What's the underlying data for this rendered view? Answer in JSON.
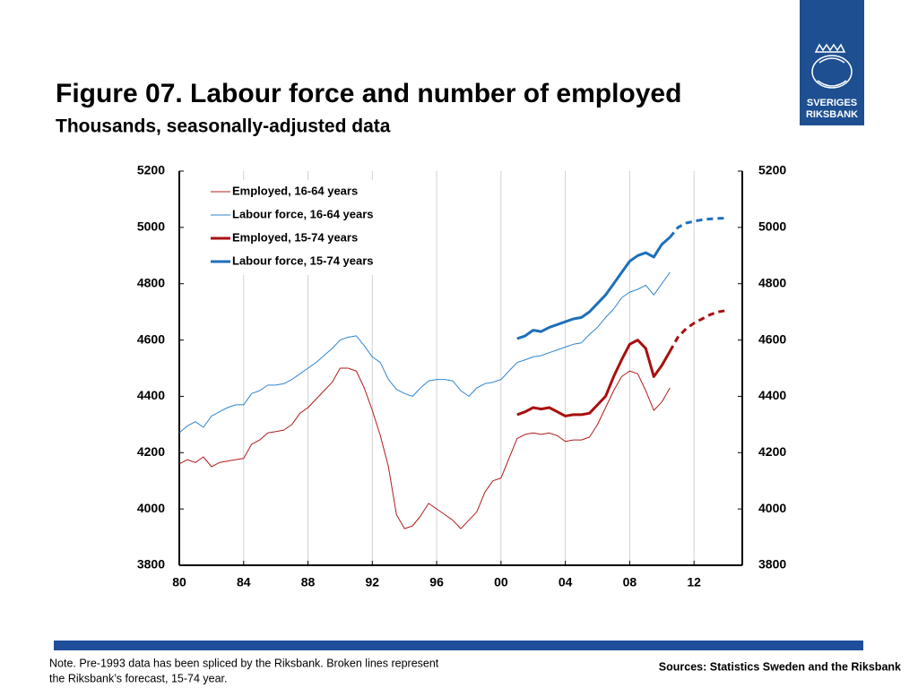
{
  "chart_data": {
    "type": "line",
    "title": "Figure 07. Labour force and number of employed",
    "subtitle": "Thousands, seasonally-adjusted data",
    "xlim": [
      1980,
      2015
    ],
    "xticks": [
      {
        "value": 1980,
        "label": "80"
      },
      {
        "value": 1984,
        "label": "84"
      },
      {
        "value": 1988,
        "label": "88"
      },
      {
        "value": 1992,
        "label": "92"
      },
      {
        "value": 1996,
        "label": "96"
      },
      {
        "value": 2000,
        "label": "00"
      },
      {
        "value": 2004,
        "label": "04"
      },
      {
        "value": 2008,
        "label": "08"
      },
      {
        "value": 2012,
        "label": "12"
      }
    ],
    "ylim": [
      3800,
      5200
    ],
    "yticks": [
      3800,
      4000,
      4200,
      4400,
      4600,
      4800,
      5000,
      5200
    ],
    "y2lim": [
      3800,
      5200
    ],
    "y2ticks": [
      3800,
      4000,
      4200,
      4400,
      4600,
      4800,
      5000,
      5200
    ],
    "grid": "x",
    "legend": "upper left",
    "forecast_from": 2010.5,
    "series": [
      {
        "name": "Employed, 16-64 years",
        "color": "#b01c1c",
        "line_width": 1,
        "x": [
          1980,
          1980.5,
          1981,
          1981.5,
          1982,
          1982.5,
          1983,
          1983.5,
          1984,
          1984.5,
          1985,
          1985.5,
          1986,
          1986.5,
          1987,
          1987.5,
          1988,
          1988.5,
          1989,
          1989.5,
          1990,
          1990.5,
          1991,
          1991.5,
          1992,
          1992.5,
          1993,
          1993.5,
          1994,
          1994.5,
          1995,
          1995.5,
          1996,
          1996.5,
          1997,
          1997.5,
          1998,
          1998.5,
          1999,
          1999.5,
          2000,
          2000.5,
          2001,
          2001.5,
          2002,
          2002.5,
          2003,
          2003.5,
          2004,
          2004.5,
          2005,
          2005.5,
          2006,
          2006.5,
          2007,
          2007.5,
          2008,
          2008.5,
          2009,
          2009.5,
          2010,
          2010.5
        ],
        "values": [
          4160,
          4175,
          4165,
          4185,
          4150,
          4165,
          4170,
          4175,
          4180,
          4230,
          4245,
          4270,
          4275,
          4280,
          4300,
          4340,
          4360,
          4390,
          4420,
          4450,
          4500,
          4500,
          4490,
          4430,
          4350,
          4260,
          4150,
          3980,
          3930,
          3940,
          3975,
          4020,
          4000,
          3980,
          3960,
          3930,
          3960,
          3990,
          4060,
          4100,
          4110,
          4180,
          4250,
          4265,
          4270,
          4265,
          4270,
          4260,
          4240,
          4245,
          4245,
          4255,
          4300,
          4360,
          4420,
          4470,
          4490,
          4480,
          4420,
          4350,
          4380,
          4430
        ]
      },
      {
        "name": "Labour force, 16-64 years",
        "color": "#2f86d0",
        "line_width": 1,
        "x": [
          1980,
          1980.5,
          1981,
          1981.5,
          1982,
          1982.5,
          1983,
          1983.5,
          1984,
          1984.5,
          1985,
          1985.5,
          1986,
          1986.5,
          1987,
          1987.5,
          1988,
          1988.5,
          1989,
          1989.5,
          1990,
          1990.5,
          1991,
          1991.5,
          1992,
          1992.5,
          1993,
          1993.5,
          1994,
          1994.5,
          1995,
          1995.5,
          1996,
          1996.5,
          1997,
          1997.5,
          1998,
          1998.5,
          1999,
          1999.5,
          2000,
          2000.5,
          2001,
          2001.5,
          2002,
          2002.5,
          2003,
          2003.5,
          2004,
          2004.5,
          2005,
          2005.5,
          2006,
          2006.5,
          2007,
          2007.5,
          2008,
          2008.5,
          2009,
          2009.5,
          2010,
          2010.5
        ],
        "values": [
          4270,
          4295,
          4310,
          4290,
          4330,
          4345,
          4360,
          4370,
          4370,
          4410,
          4420,
          4440,
          4440,
          4445,
          4460,
          4480,
          4500,
          4520,
          4545,
          4570,
          4600,
          4610,
          4615,
          4580,
          4540,
          4520,
          4460,
          4425,
          4410,
          4400,
          4430,
          4455,
          4460,
          4460,
          4455,
          4420,
          4400,
          4430,
          4445,
          4450,
          4460,
          4490,
          4520,
          4530,
          4540,
          4545,
          4555,
          4565,
          4575,
          4585,
          4590,
          4620,
          4645,
          4680,
          4710,
          4750,
          4770,
          4780,
          4795,
          4760,
          4800,
          4840
        ]
      },
      {
        "name": "Employed, 15-74 years",
        "color": "#a80f0f",
        "line_width": 3,
        "x": [
          2001,
          2001.5,
          2002,
          2002.5,
          2003,
          2003.5,
          2004,
          2004.5,
          2005,
          2005.5,
          2006,
          2006.5,
          2007,
          2007.5,
          2008,
          2008.5,
          2009,
          2009.5,
          2010,
          2010.5,
          2011,
          2011.5,
          2012,
          2012.5,
          2013,
          2013.5,
          2014
        ],
        "values": [
          4335,
          4345,
          4360,
          4355,
          4360,
          4345,
          4330,
          4335,
          4335,
          4340,
          4370,
          4400,
          4470,
          4530,
          4585,
          4600,
          4570,
          4470,
          4510,
          4560,
          4610,
          4640,
          4660,
          4675,
          4690,
          4700,
          4705
        ]
      },
      {
        "name": "Labour force, 15-74 years",
        "color": "#1d6fba",
        "line_width": 3,
        "x": [
          2001,
          2001.5,
          2002,
          2002.5,
          2003,
          2003.5,
          2004,
          2004.5,
          2005,
          2005.5,
          2006,
          2006.5,
          2007,
          2007.5,
          2008,
          2008.5,
          2009,
          2009.5,
          2010,
          2010.5,
          2011,
          2011.5,
          2012,
          2012.5,
          2013,
          2013.5,
          2014
        ],
        "values": [
          4605,
          4615,
          4635,
          4630,
          4645,
          4655,
          4665,
          4675,
          4680,
          4700,
          4730,
          4760,
          4800,
          4840,
          4880,
          4900,
          4910,
          4895,
          4940,
          4965,
          5000,
          5015,
          5022,
          5027,
          5030,
          5032,
          5033
        ]
      }
    ]
  },
  "note": [
    "Note. Pre-1993 data has been spliced by the Riksbank. Broken lines represent",
    "the Riksbank’s forecast, 15-74 year."
  ],
  "sources": "Sources: Statistics Sweden and the Riksbank",
  "logo": [
    "SVERIGES",
    "RIKSBANK"
  ]
}
